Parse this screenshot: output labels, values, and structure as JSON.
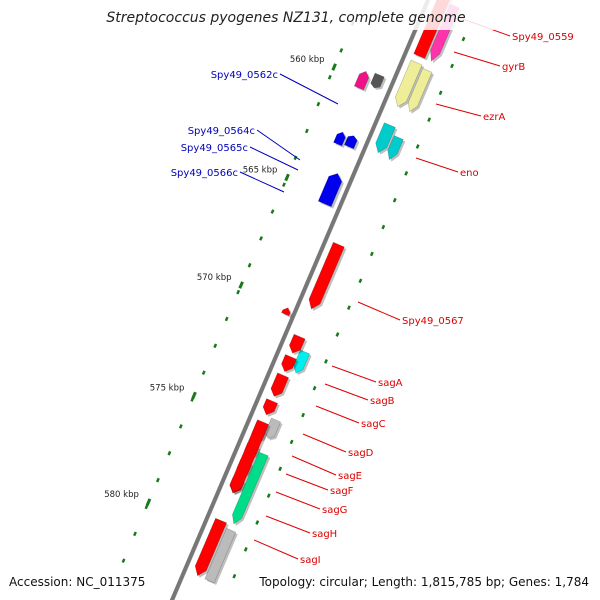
{
  "title": "Streptococcus pyogenes NZ131, complete genome",
  "footer": {
    "accession": "Accession: NC_011375",
    "summary": "Topology: circular; Length: 1,815,785 bp; Genes: 1,784"
  },
  "colors": {
    "forward_label": "#dd0000",
    "reverse_label": "#0000bb",
    "tick": "#1a7a1a",
    "backbone": "#777777"
  },
  "ticks": [
    {
      "label": "560 kbp"
    },
    {
      "label": "565 kbp"
    },
    {
      "label": "570 kbp"
    },
    {
      "label": "575 kbp"
    },
    {
      "label": "580 kbp"
    }
  ],
  "genes": [
    {
      "name": "Spy49_0559",
      "strand": "forward",
      "color": "#ff0000"
    },
    {
      "name": "gyrB",
      "strand": "forward",
      "color": "#ff33aa"
    },
    {
      "name": "ezrA",
      "strand": "forward",
      "color": "#eeee99"
    },
    {
      "name": "eno",
      "strand": "forward",
      "color": "#00cccc"
    },
    {
      "name": "Spy49_0562c",
      "strand": "reverse",
      "color": "#555555"
    },
    {
      "name": "Spy49_0564c",
      "strand": "reverse",
      "color": "#ee1188"
    },
    {
      "name": "Spy49_0565c",
      "strand": "reverse",
      "color": "#0000ee"
    },
    {
      "name": "Spy49_0566c",
      "strand": "reverse",
      "color": "#0000ee"
    },
    {
      "name": "Spy49_0567",
      "strand": "forward",
      "color": "#ff0000"
    },
    {
      "name": "sagA",
      "strand": "forward",
      "color": "#00eeee"
    },
    {
      "name": "sagB",
      "strand": "forward",
      "color": "#ff0000"
    },
    {
      "name": "sagC",
      "strand": "forward",
      "color": "#ff0000"
    },
    {
      "name": "sagD",
      "strand": "forward",
      "color": "#bbbbbb"
    },
    {
      "name": "sagE",
      "strand": "forward",
      "color": "#ff0000"
    },
    {
      "name": "sagF",
      "strand": "forward",
      "color": "#ff0000"
    },
    {
      "name": "sagG",
      "strand": "forward",
      "color": "#ff0000"
    },
    {
      "name": "sagH",
      "strand": "forward",
      "color": "#00dd88"
    },
    {
      "name": "sagI",
      "strand": "forward",
      "color": "#ff0000"
    }
  ]
}
